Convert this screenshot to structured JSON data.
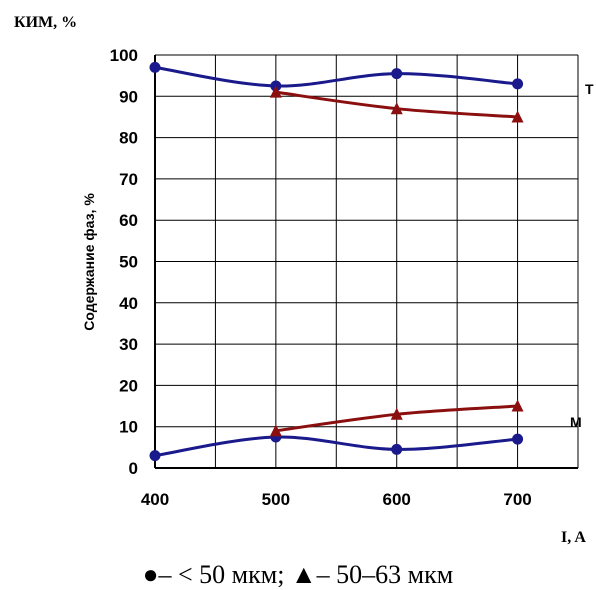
{
  "chart_data": {
    "type": "line",
    "top_left_label": "КИМ, %",
    "ylabel": "Содержание фаз, %",
    "xlabel": "I, A",
    "ylim": [
      0,
      100
    ],
    "xlim": [
      400,
      750
    ],
    "grid": true,
    "y_ticks": [
      "0",
      "10",
      "20",
      "30",
      "40",
      "50",
      "60",
      "70",
      "80",
      "90",
      "100"
    ],
    "x_ticks": [
      "400",
      "500",
      "600",
      "700"
    ],
    "annotations": {
      "upper": "Т",
      "lower": "М"
    },
    "legend_text": "●– < 50 мкм; ▲– 50–63 мкм",
    "series": [
      {
        "marker": "circle",
        "color": "#1a1a8c",
        "x": [
          400,
          500,
          600,
          700
        ],
        "y": [
          97,
          92.5,
          95.5,
          93
        ]
      },
      {
        "marker": "triangle",
        "color": "#8b0f0f",
        "x": [
          500,
          600,
          700
        ],
        "y": [
          91,
          87,
          85
        ]
      },
      {
        "marker": "circle",
        "color": "#1a1a8c",
        "x": [
          400,
          500,
          600,
          700
        ],
        "y": [
          3,
          7.5,
          4.5,
          7
        ]
      },
      {
        "marker": "triangle",
        "color": "#8b0f0f",
        "x": [
          500,
          600,
          700
        ],
        "y": [
          9,
          13,
          15
        ]
      }
    ]
  }
}
